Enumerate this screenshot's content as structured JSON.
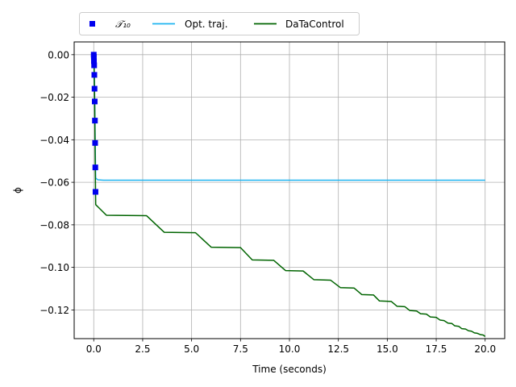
{
  "chart_data": {
    "type": "line",
    "title": "",
    "xlabel": "Time (seconds)",
    "ylabel": "ϕ",
    "xlim": [
      -1.0,
      21.0
    ],
    "ylim": [
      -0.1335,
      0.006
    ],
    "xticks": [
      0.0,
      2.5,
      5.0,
      7.5,
      10.0,
      12.5,
      15.0,
      17.5,
      20.0
    ],
    "xtick_labels": [
      "0.0",
      "2.5",
      "5.0",
      "7.5",
      "10.0",
      "12.5",
      "15.0",
      "17.5",
      "20.0"
    ],
    "yticks": [
      0.0,
      -0.02,
      -0.04,
      -0.06,
      -0.08,
      -0.1,
      -0.12
    ],
    "ytick_labels": [
      "0.00",
      "−0.02",
      "−0.04",
      "−0.06",
      "−0.08",
      "−0.10",
      "−0.12"
    ],
    "grid": true,
    "legend": {
      "placement": "top-center",
      "entries": [
        "𝒯₁₀",
        "Opt. traj.",
        "DaTaControl"
      ]
    },
    "series": [
      {
        "name": "𝒯₁₀",
        "kind": "scatter",
        "color": "#0000ee",
        "marker": "square",
        "x": [
          0.0,
          0.005,
          0.01,
          0.02,
          0.03,
          0.04,
          0.05,
          0.06,
          0.07,
          0.08,
          0.09
        ],
        "y": [
          0.0,
          -0.001,
          -0.003,
          -0.005,
          -0.0095,
          -0.016,
          -0.022,
          -0.031,
          -0.0415,
          -0.053,
          -0.0645
        ]
      },
      {
        "name": "Opt. traj.",
        "kind": "line",
        "color": "#1eb4f0",
        "x": [
          0.0,
          0.02,
          0.05,
          0.08,
          0.1,
          0.2,
          0.5,
          20.0
        ],
        "y": [
          0.0,
          -0.006,
          -0.022,
          -0.046,
          -0.058,
          -0.0588,
          -0.059,
          -0.059
        ]
      },
      {
        "name": "DaTaControl",
        "kind": "line",
        "color": "#006400",
        "x": [
          0.0,
          0.02,
          0.05,
          0.08,
          0.1,
          0.65,
          2.7,
          3.6,
          5.2,
          6.0,
          7.5,
          8.1,
          9.2,
          9.8,
          10.7,
          11.25,
          12.1,
          12.6,
          13.3,
          13.7,
          14.3,
          14.6,
          15.2,
          15.5,
          15.9,
          16.15,
          16.5,
          16.7,
          17.0,
          17.2,
          17.5,
          17.7,
          17.9,
          18.1,
          18.3,
          18.45,
          18.65,
          18.8,
          19.0,
          19.15,
          19.3,
          19.45,
          19.6,
          19.75,
          19.9,
          20.0
        ],
        "y": [
          0.0,
          -0.006,
          -0.025,
          -0.055,
          -0.0705,
          -0.0755,
          -0.0757,
          -0.0835,
          -0.0837,
          -0.0905,
          -0.0907,
          -0.0965,
          -0.0967,
          -0.1015,
          -0.1017,
          -0.1058,
          -0.106,
          -0.1095,
          -0.1097,
          -0.1128,
          -0.113,
          -0.1158,
          -0.116,
          -0.1183,
          -0.1185,
          -0.1203,
          -0.1205,
          -0.1218,
          -0.122,
          -0.1233,
          -0.1235,
          -0.1248,
          -0.125,
          -0.1262,
          -0.1264,
          -0.1275,
          -0.1277,
          -0.1288,
          -0.129,
          -0.1298,
          -0.13,
          -0.1308,
          -0.131,
          -0.1316,
          -0.1318,
          -0.1325
        ]
      }
    ]
  }
}
